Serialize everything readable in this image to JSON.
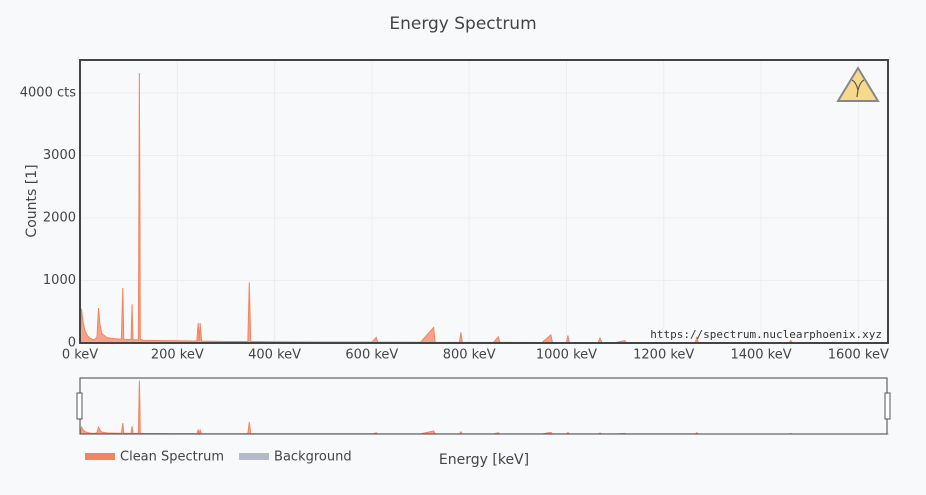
{
  "chart_data": {
    "type": "area",
    "title": "Energy Spectrum",
    "x_label": "Energy [keV]",
    "y_label": "Counts [1]",
    "watermark": "https://spectrum.nuclearphoenix.xyz",
    "xlim": [
      0,
      1661
    ],
    "ylim": [
      0,
      4528
    ],
    "xticks": [
      {
        "value": 0,
        "label": "0 keV"
      },
      {
        "value": 200,
        "label": "200 keV"
      },
      {
        "value": 400,
        "label": "400 keV"
      },
      {
        "value": 600,
        "label": "600 keV"
      },
      {
        "value": 800,
        "label": "800 keV"
      },
      {
        "value": 1000,
        "label": "1000 keV"
      },
      {
        "value": 1200,
        "label": "1200 keV"
      },
      {
        "value": 1400,
        "label": "1400 keV"
      },
      {
        "value": 1600,
        "label": "1600 keV"
      }
    ],
    "yticks": [
      0,
      1000,
      2000,
      3000,
      {
        "value": 4000,
        "label": "4000 cts"
      }
    ],
    "grid": true,
    "range_slider": true,
    "x": [
      0,
      3,
      6,
      10,
      15,
      20,
      25,
      30,
      35,
      38,
      41,
      45,
      50,
      55,
      60,
      70,
      80,
      85,
      88,
      90,
      100,
      105,
      107,
      109,
      115,
      120,
      122,
      123,
      124,
      130,
      150,
      200,
      240,
      243,
      245,
      247,
      250,
      300,
      345,
      348,
      351,
      400,
      500,
      600,
      609,
      612,
      700,
      727,
      730,
      780,
      783,
      786,
      850,
      860,
      863,
      950,
      968,
      971,
      1000,
      1003,
      1006,
      1065,
      1069,
      1073,
      1100,
      1120,
      1123,
      1200,
      1265,
      1268,
      1271,
      1400,
      1458,
      1461,
      1464,
      1600,
      1661
    ],
    "series": [
      {
        "name": "Clean Spectrum",
        "color": "#f4845f",
        "values": [
          0,
          550,
          350,
          200,
          120,
          80,
          60,
          50,
          100,
          560,
          300,
          150,
          120,
          90,
          80,
          70,
          65,
          60,
          880,
          60,
          55,
          60,
          620,
          55,
          50,
          50,
          4320,
          2550,
          60,
          45,
          40,
          35,
          30,
          320,
          30,
          320,
          30,
          25,
          25,
          970,
          25,
          20,
          15,
          15,
          90,
          15,
          12,
          250,
          12,
          10,
          170,
          10,
          10,
          100,
          10,
          8,
          130,
          8,
          8,
          120,
          8,
          7,
          80,
          7,
          6,
          40,
          6,
          6,
          6,
          100,
          6,
          5,
          5,
          40,
          5,
          5,
          5
        ]
      },
      {
        "name": "Background",
        "color": "#b4bccb",
        "visible": false
      }
    ]
  }
}
